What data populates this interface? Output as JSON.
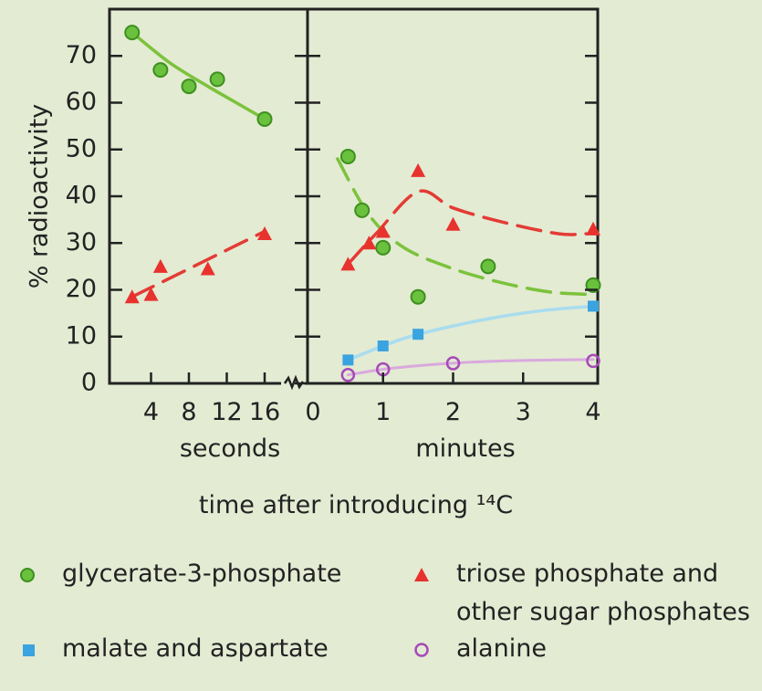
{
  "chart_data": {
    "type": "scatter",
    "ylabel": "% radioactivity",
    "xlabel": "time after introducing ¹⁴C",
    "ylim": [
      0,
      80
    ],
    "yticks": [
      0,
      10,
      20,
      30,
      40,
      50,
      60,
      70
    ],
    "panels": [
      {
        "name": "seconds",
        "xlabel": "seconds",
        "xlim": [
          0,
          18
        ],
        "xticks": [
          4,
          8,
          12,
          16
        ],
        "series": [
          {
            "key": "g3p",
            "points": [
              [
                2,
                75
              ],
              [
                5,
                67
              ],
              [
                8,
                63.5
              ],
              [
                11,
                65
              ],
              [
                16,
                56.5
              ]
            ],
            "fit": [
              [
                2,
                75
              ],
              [
                6,
                68.5
              ],
              [
                10,
                63.5
              ],
              [
                13,
                60
              ],
              [
                16,
                56.5
              ]
            ]
          },
          {
            "key": "triose",
            "points": [
              [
                2,
                18.5
              ],
              [
                4,
                19
              ],
              [
                5,
                25
              ],
              [
                10,
                24.5
              ],
              [
                16,
                32
              ]
            ],
            "fit": [
              [
                2,
                18.5
              ],
              [
                16,
                32.5
              ]
            ]
          }
        ]
      },
      {
        "name": "minutes",
        "xlabel": "minutes",
        "xlim": [
          0,
          4.15
        ],
        "xticks": [
          0,
          1,
          2,
          3,
          4
        ],
        "series": [
          {
            "key": "g3p",
            "points": [
              [
                0.5,
                48.5
              ],
              [
                0.7,
                37
              ],
              [
                1,
                29
              ],
              [
                1.5,
                18.5
              ],
              [
                2.5,
                25
              ],
              [
                4,
                21
              ]
            ],
            "fit": [
              [
                0.35,
                48
              ],
              [
                0.8,
                36
              ],
              [
                1.3,
                29
              ],
              [
                2,
                24.5
              ],
              [
                2.7,
                21.5
              ],
              [
                3.4,
                19.5
              ],
              [
                4,
                19
              ]
            ]
          },
          {
            "key": "triose",
            "points": [
              [
                0.5,
                25.5
              ],
              [
                0.8,
                30
              ],
              [
                1,
                32.5
              ],
              [
                1.5,
                45.5
              ],
              [
                2,
                34
              ],
              [
                4,
                33
              ]
            ],
            "fit": [
              [
                0.5,
                25.5
              ],
              [
                0.9,
                32
              ],
              [
                1.5,
                41
              ],
              [
                2,
                37.5
              ],
              [
                2.7,
                34.5
              ],
              [
                3.5,
                32
              ],
              [
                3.9,
                32
              ]
            ]
          },
          {
            "key": "malate",
            "points": [
              [
                0.5,
                5
              ],
              [
                1,
                8
              ],
              [
                1.5,
                10.5
              ],
              [
                4,
                16.5
              ]
            ],
            "fit": [
              [
                0.5,
                5
              ],
              [
                1,
                8
              ],
              [
                1.5,
                10.5
              ],
              [
                2.5,
                13.8
              ],
              [
                3.3,
                15.6
              ],
              [
                4,
                16.5
              ]
            ]
          },
          {
            "key": "alanine",
            "points": [
              [
                0.5,
                1.8
              ],
              [
                1,
                3
              ],
              [
                2,
                4.3
              ],
              [
                4,
                4.8
              ]
            ],
            "fit": [
              [
                0.5,
                1.8
              ],
              [
                1,
                3
              ],
              [
                1.6,
                3.9
              ],
              [
                2.2,
                4.5
              ],
              [
                3,
                4.9
              ],
              [
                4,
                5.1
              ]
            ]
          }
        ]
      }
    ]
  },
  "legend": [
    {
      "key": "g3p",
      "label": "glycerate-3-phosphate",
      "color": "#6ac13e",
      "marker": "circle-filled"
    },
    {
      "key": "triose",
      "label": "triose phosphate and",
      "label2": "other sugar phosphates",
      "color": "#e63b3b",
      "marker": "triangle"
    },
    {
      "key": "malate",
      "label": "malate and aspartate",
      "color": "#3aa3e0",
      "marker": "square"
    },
    {
      "key": "alanine",
      "label": "alanine",
      "color": "#a64ab8",
      "marker": "circle-open"
    }
  ],
  "styles": {
    "g3p": {
      "color": "#6ac13e",
      "edge": "#3e8f1e",
      "fitColor": "#7cc23c",
      "dash": "solid-then-dash"
    },
    "triose": {
      "color": "#e8322e",
      "fitColor": "#e43b35"
    },
    "malate": {
      "color": "#3aa3e0",
      "fitColor": "#a9dcef"
    },
    "alanine": {
      "color": "#a64ab8",
      "fitColor": "#d9a9de"
    }
  }
}
